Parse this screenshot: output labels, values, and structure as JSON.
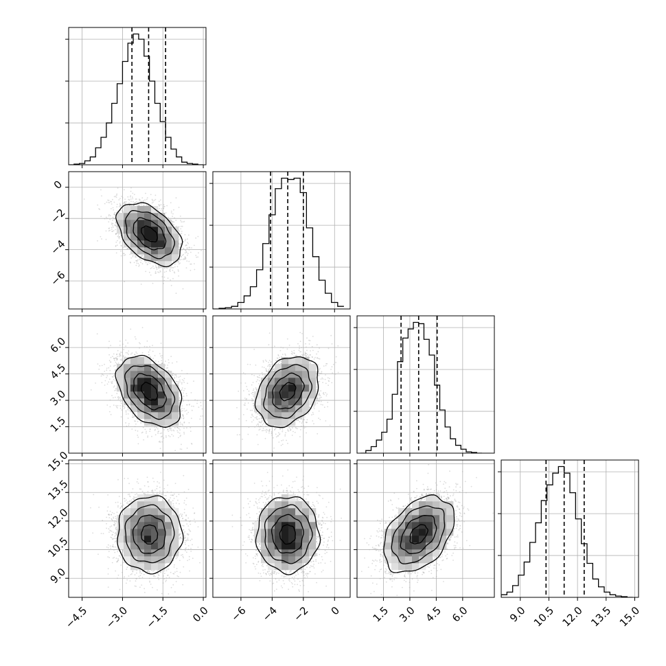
{
  "chart_data": {
    "type": "corner",
    "grid": true,
    "variables": [
      {
        "index": 0,
        "range": [
          -5.0,
          0.1
        ],
        "ticks": [
          -4.5,
          -3.0,
          -1.5,
          0.0
        ],
        "tick_labels": [
          "−4.5",
          "−3.0",
          "−1.5",
          "0.0"
        ],
        "quantiles": [
          -2.65,
          -2.03,
          -1.4
        ],
        "histogram": {
          "bin_edges": [
            -5.0,
            -4.8,
            -4.6,
            -4.4,
            -4.2,
            -4.0,
            -3.8,
            -3.6,
            -3.4,
            -3.2,
            -3.0,
            -2.8,
            -2.6,
            -2.4,
            -2.2,
            -2.0,
            -1.8,
            -1.6,
            -1.4,
            -1.2,
            -1.0,
            -0.8,
            -0.6,
            -0.4,
            -0.2,
            0.0
          ],
          "counts": [
            0.0,
            0.005,
            0.01,
            0.03,
            0.06,
            0.13,
            0.21,
            0.32,
            0.47,
            0.62,
            0.79,
            0.93,
            1.0,
            0.96,
            0.83,
            0.64,
            0.47,
            0.33,
            0.21,
            0.12,
            0.06,
            0.02,
            0.01,
            0.005,
            0.0
          ]
        }
      },
      {
        "index": 1,
        "range": [
          -7.8,
          1.0
        ],
        "ticks": [
          -6,
          -4,
          -2,
          0
        ],
        "tick_labels": [
          "−6",
          "−4",
          "−2",
          "0"
        ],
        "quantiles": [
          -4.1,
          -3.0,
          -2.0
        ],
        "histogram": {
          "bin_edges": [
            -7.8,
            -7.4,
            -7.0,
            -6.6,
            -6.2,
            -5.8,
            -5.4,
            -5.0,
            -4.6,
            -4.2,
            -3.8,
            -3.4,
            -3.0,
            -2.6,
            -2.2,
            -1.8,
            -1.4,
            -1.0,
            -0.6,
            -0.2,
            0.2,
            0.6
          ],
          "counts": [
            0.0,
            0.005,
            0.01,
            0.02,
            0.05,
            0.1,
            0.17,
            0.3,
            0.5,
            0.72,
            0.92,
            1.0,
            0.99,
            1.0,
            0.89,
            0.62,
            0.4,
            0.22,
            0.12,
            0.05,
            0.02
          ]
        }
      },
      {
        "index": 2,
        "range": [
          0.0,
          7.8
        ],
        "ticks": [
          1.5,
          3.0,
          4.5,
          6.0
        ],
        "tick_labels": [
          "1.5",
          "3.0",
          "4.5",
          "6.0"
        ],
        "quantiles": [
          2.5,
          3.5,
          4.55
        ],
        "histogram": {
          "bin_edges": [
            0.2,
            0.5,
            0.8,
            1.1,
            1.4,
            1.7,
            2.0,
            2.3,
            2.6,
            2.9,
            3.2,
            3.5,
            3.8,
            4.1,
            4.4,
            4.7,
            5.0,
            5.3,
            5.6,
            5.9,
            6.2,
            6.5,
            6.8,
            7.1
          ],
          "counts": [
            0.0,
            0.02,
            0.05,
            0.1,
            0.16,
            0.26,
            0.45,
            0.7,
            0.88,
            0.95,
            1.0,
            0.99,
            0.87,
            0.75,
            0.52,
            0.33,
            0.2,
            0.11,
            0.06,
            0.03,
            0.01,
            0.005,
            0.0
          ]
        }
      },
      {
        "index": 3,
        "range": [
          8.0,
          15.2
        ],
        "ticks": [
          9.0,
          10.5,
          12.0,
          13.5,
          15.0
        ],
        "tick_labels": [
          "9.0",
          "10.5",
          "12.0",
          "13.5",
          "15.0"
        ],
        "quantiles": [
          10.35,
          11.3,
          12.35
        ],
        "histogram": {
          "bin_edges": [
            8.0,
            8.3,
            8.6,
            8.9,
            9.2,
            9.5,
            9.8,
            10.1,
            10.4,
            10.7,
            11.0,
            11.3,
            11.6,
            11.9,
            12.2,
            12.5,
            12.8,
            13.1,
            13.4,
            13.7,
            14.0,
            14.3,
            14.6,
            14.9
          ],
          "counts": [
            0.02,
            0.04,
            0.09,
            0.17,
            0.27,
            0.42,
            0.57,
            0.74,
            0.86,
            0.95,
            1.0,
            0.95,
            0.8,
            0.6,
            0.41,
            0.26,
            0.14,
            0.08,
            0.04,
            0.02,
            0.01,
            0.005,
            0.0
          ]
        }
      }
    ],
    "pairs": [
      {
        "row": 1,
        "col": 0,
        "center": [
          -2.0,
          -3.0
        ],
        "sd": [
          0.6,
          1.0
        ],
        "corr": -0.45
      },
      {
        "row": 2,
        "col": 0,
        "center": [
          -2.0,
          3.5
        ],
        "sd": [
          0.6,
          1.0
        ],
        "corr": -0.4
      },
      {
        "row": 2,
        "col": 1,
        "center": [
          -3.0,
          3.5
        ],
        "sd": [
          1.0,
          1.0
        ],
        "corr": 0.3
      },
      {
        "row": 3,
        "col": 0,
        "center": [
          -2.0,
          11.3
        ],
        "sd": [
          0.6,
          1.0
        ],
        "corr": 0.0
      },
      {
        "row": 3,
        "col": 1,
        "center": [
          -3.0,
          11.3
        ],
        "sd": [
          1.0,
          1.0
        ],
        "corr": 0.0
      },
      {
        "row": 3,
        "col": 2,
        "center": [
          3.5,
          11.3
        ],
        "sd": [
          1.0,
          1.0
        ],
        "corr": 0.4
      }
    ],
    "contour_levels_sigma": [
      0.5,
      1.0,
      1.5,
      2.0
    ],
    "colors": {
      "line": "#000000",
      "points": "#b0b0b0",
      "grid": "#b0b0b0",
      "density_dark": "#1a1a1a"
    }
  }
}
